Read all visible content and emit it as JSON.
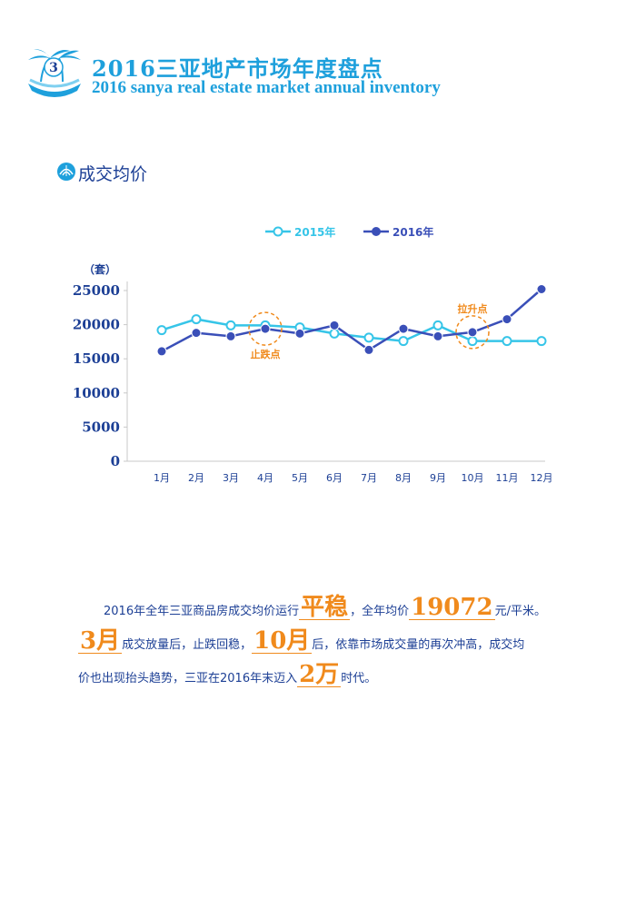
{
  "header": {
    "badge_number": "3",
    "title_cn": "2016三亚地产市场年度盘点",
    "title_en": "2016 sanya real estate market annual inventory"
  },
  "section": {
    "title": "成交均价"
  },
  "chart_data": {
    "type": "line",
    "categories": [
      "1月",
      "2月",
      "3月",
      "4月",
      "5月",
      "6月",
      "7月",
      "8月",
      "9月",
      "10月",
      "11月",
      "12月"
    ],
    "ylabel": "（套）",
    "ylim": [
      0,
      25000
    ],
    "yticks": [
      0,
      5000,
      10000,
      15000,
      20000,
      25000
    ],
    "grid": false,
    "legend_position": "top",
    "series": [
      {
        "name": "2015年",
        "color": "#36c5e8",
        "marker": "hollow-circle",
        "values": [
          19200,
          20800,
          19900,
          19900,
          19600,
          18700,
          18100,
          17600,
          19900,
          17600,
          17600,
          17600
        ]
      },
      {
        "name": "2016年",
        "color": "#3a4fb8",
        "marker": "filled-circle",
        "values": [
          16100,
          18800,
          18300,
          19400,
          18700,
          19900,
          16300,
          19400,
          18300,
          18900,
          20800,
          25200
        ]
      }
    ],
    "annotations": [
      {
        "text": "止跌点",
        "category": "4月",
        "value": 19400,
        "label_side": "below"
      },
      {
        "text": "拉升点",
        "category": "10月",
        "value": 18900,
        "label_side": "above"
      }
    ]
  },
  "summary": {
    "l1_a": "2016年全年三亚商品房成交均价运行",
    "l1_hl1": "平稳",
    "l1_b": "，全年均价",
    "l1_hl2": "19072",
    "l1_c": "元/平米。",
    "l2_hl1": "3月",
    "l2_a": "成交放量后，止跌回稳，",
    "l2_hl2": "10月",
    "l2_b": "后，依靠市场成交量的再次冲高，成交均",
    "l3_a": "价也出现抬头趋势，三亚在2016年末迈入",
    "l3_hl": "2万",
    "l3_b": "时代。"
  }
}
